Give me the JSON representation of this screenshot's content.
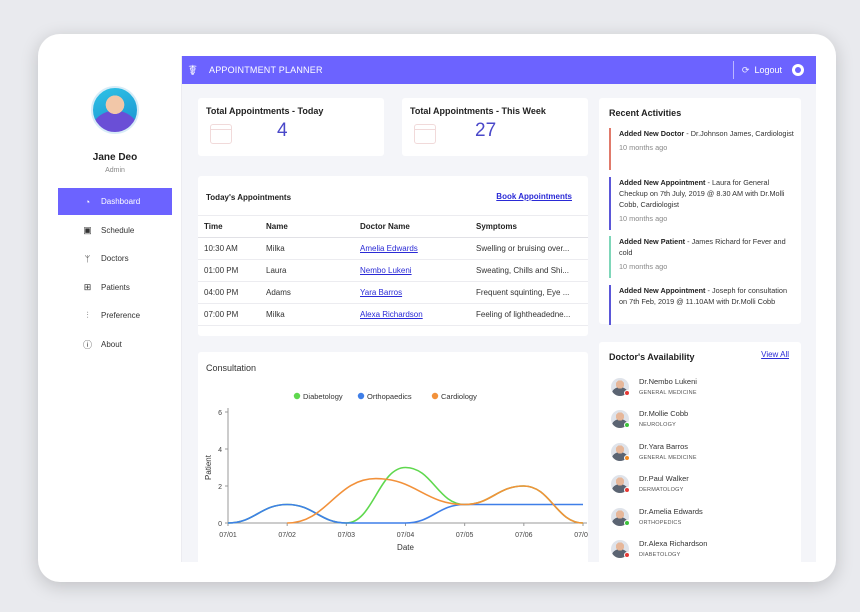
{
  "header": {
    "title": "APPOINTMENT PLANNER",
    "logout": "Logout"
  },
  "user": {
    "name": "Jane Deo",
    "role": "Admin"
  },
  "nav": [
    {
      "label": "Dashboard",
      "icon": "dashboard-icon",
      "active": true
    },
    {
      "label": "Schedule",
      "icon": "calendar-icon"
    },
    {
      "label": "Doctors",
      "icon": "stethoscope-icon"
    },
    {
      "label": "Patients",
      "icon": "patients-icon"
    },
    {
      "label": "Preference",
      "icon": "sliders-icon"
    },
    {
      "label": "About",
      "icon": "info-icon"
    }
  ],
  "stats": {
    "today": {
      "title": "Total Appointments - Today",
      "value": "4"
    },
    "week": {
      "title": "Total Appointments - This Week",
      "value": "27"
    }
  },
  "appointments": {
    "title": "Today's Appointments",
    "book_link": "Book Appointments",
    "columns": [
      "Time",
      "Name",
      "Doctor Name",
      "Symptoms"
    ],
    "rows": [
      {
        "time": "10:30 AM",
        "name": "Milka",
        "doctor": "Amelia Edwards",
        "symptoms": "Swelling or bruising over..."
      },
      {
        "time": "01:00 PM",
        "name": "Laura",
        "doctor": "Nembo Lukeni",
        "symptoms": "Sweating, Chills and Shi..."
      },
      {
        "time": "04:00 PM",
        "name": "Adams",
        "doctor": "Yara Barros",
        "symptoms": "Frequent squinting, Eye ..."
      },
      {
        "time": "07:00 PM",
        "name": "Milka",
        "doctor": "Alexa Richardson",
        "symptoms": "Feeling of lightheadedne..."
      }
    ]
  },
  "consultation": {
    "title": "Consultation"
  },
  "chart_data": {
    "type": "line",
    "title": "",
    "xlabel": "Date",
    "ylabel": "Patient",
    "categories": [
      "07/01",
      "07/02",
      "07/03",
      "07/04",
      "07/05",
      "07/06",
      "07/07"
    ],
    "ylim": [
      0,
      6
    ],
    "yticks": [
      0,
      2,
      4,
      6
    ],
    "legend": "top",
    "series": [
      {
        "name": "Diabetology",
        "color": "#5fd84e",
        "points": [
          [
            0,
            0
          ],
          [
            1,
            1
          ],
          [
            2,
            0
          ],
          [
            3,
            3
          ],
          [
            4,
            1
          ],
          [
            5,
            2
          ],
          [
            6,
            0
          ]
        ]
      },
      {
        "name": "Orthopaedics",
        "color": "#3f7fe8",
        "points": [
          [
            0,
            0
          ],
          [
            1,
            1
          ],
          [
            2,
            0
          ],
          [
            3,
            0
          ],
          [
            4,
            1
          ],
          [
            5,
            1
          ],
          [
            6,
            1
          ]
        ]
      },
      {
        "name": "Cardiology",
        "color": "#f2913a",
        "points": [
          [
            1,
            0
          ],
          [
            2.5,
            2.4
          ],
          [
            4,
            1
          ],
          [
            5,
            2
          ],
          [
            6,
            0
          ]
        ]
      }
    ]
  },
  "recent": {
    "title": "Recent Activities",
    "items": [
      {
        "label": "Added New Doctor",
        "text": " - Dr.Johnson James, Cardiologist",
        "time": "10 months ago",
        "color": "#e07a6b"
      },
      {
        "label": "Added New Appointment",
        "text": " - Laura for General Checkup on 7th July, 2019 @ 8.30 AM with Dr.Molli Cobb, Cardiologist",
        "time": "10 months ago",
        "color": "#5b57d8"
      },
      {
        "label": "Added New Patient",
        "text": " - James Richard for Fever and cold",
        "time": "10 months ago",
        "color": "#7fd6b9"
      },
      {
        "label": "Added New Appointment",
        "text": " - Joseph for consultation on 7th Feb, 2019 @ 11.10AM with Dr.Molli Cobb",
        "time": "",
        "color": "#5b57d8"
      }
    ]
  },
  "availability": {
    "title": "Doctor's Availability",
    "view_all": "View All",
    "doctors": [
      {
        "name": "Dr.Nembo Lukeni",
        "spec": "GENERAL MEDICINE",
        "status": "#e53935"
      },
      {
        "name": "Dr.Mollie Cobb",
        "spec": "NEUROLOGY",
        "status": "#3cc13b"
      },
      {
        "name": "Dr.Yara Barros",
        "spec": "GENERAL MEDICINE",
        "status": "#f08a24"
      },
      {
        "name": "Dr.Paul Walker",
        "spec": "DERMATOLOGY",
        "status": "#e53935"
      },
      {
        "name": "Dr.Amelia Edwards",
        "spec": "ORTHOPEDICS",
        "status": "#3cc13b"
      },
      {
        "name": "Dr.Alexa Richardson",
        "spec": "DIABETOLOGY",
        "status": "#e53935"
      }
    ]
  }
}
